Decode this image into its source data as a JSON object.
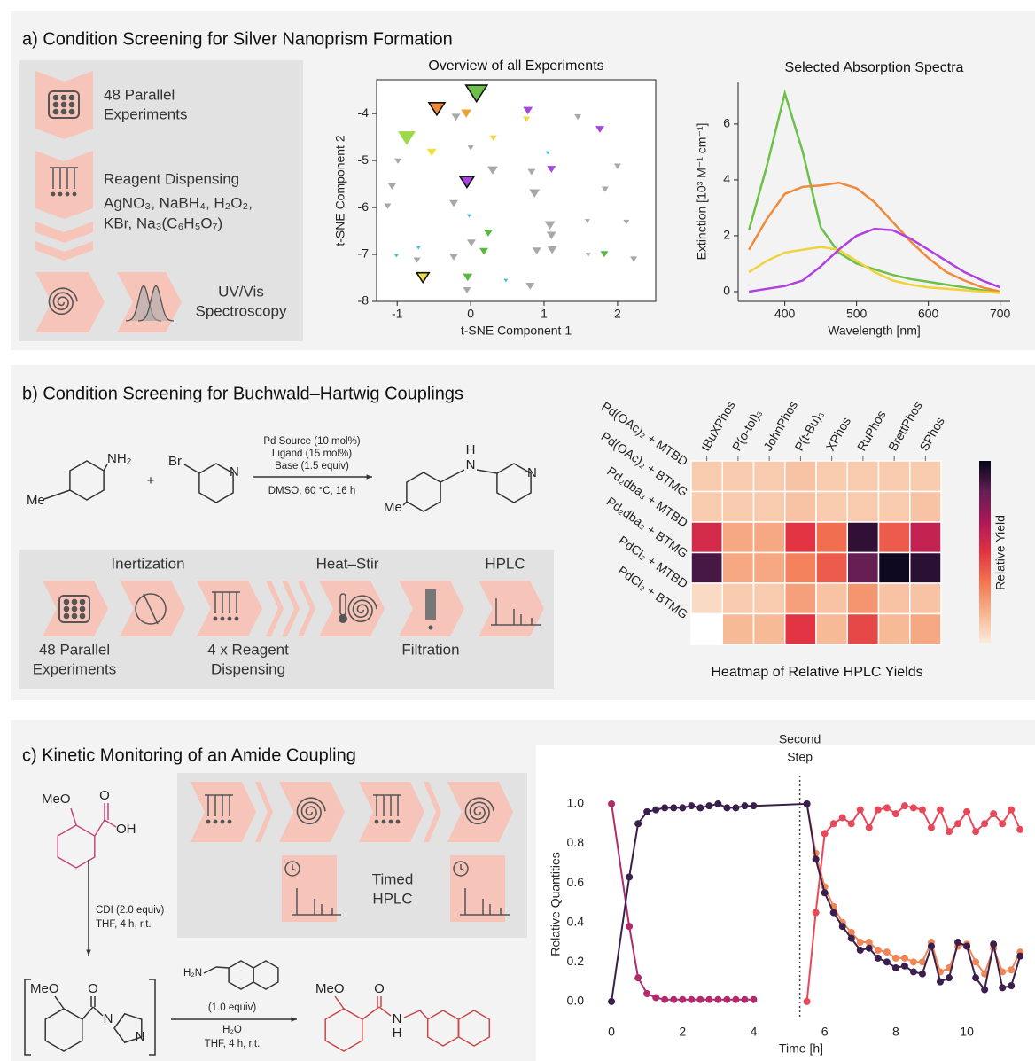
{
  "figure": {
    "panel_a": {
      "title": "a) Condition Screening for Silver Nanoprism Formation",
      "step1": [
        "48 Parallel",
        "Experiments"
      ],
      "step2_title": "Reagent Dispensing",
      "step2_reagents": [
        "AgNO₃, NaBH₄, H₂O₂,",
        "KBr, Na₃(C₆H₅O₇)"
      ],
      "step3": [
        "UV/Vis",
        "Spectroscopy"
      ]
    },
    "panel_b": {
      "title": "b) Condition Screening for Buchwald–Hartwig Couplings",
      "reaction": {
        "amine": "NH₂",
        "methyl": "Me",
        "plus": "+",
        "bromo": "Br",
        "ring_n": "N",
        "conditions_above": [
          "Pd Source (10 mol%)",
          "Ligand (15 mol%)",
          "Base (1.5 equiv)"
        ],
        "conditions_below": "DMSO, 60 °C, 16 h",
        "product_h": "H",
        "product_n": "N",
        "product_methyl": "Me",
        "product_ring_n": "N"
      },
      "workflow": {
        "top": [
          "Inertization",
          "Heat–Stir",
          "HPLC"
        ],
        "step1": [
          "48 Parallel",
          "Experiments"
        ],
        "step2": [
          "4 x Reagent",
          "Dispensing"
        ],
        "step3": "Filtration"
      }
    },
    "panel_c": {
      "title": "c) Kinetic Monitoring of an Amide Coupling",
      "acid": {
        "methoxy": "MeO",
        "oxygen": "O",
        "hydroxy": "OH"
      },
      "step1_conditions": [
        "CDI (2.0 equiv)",
        "THF, 4 h, r.t."
      ],
      "intermediate": {
        "methoxy": "MeO",
        "oxygen": "O",
        "n1": "N",
        "n2": "N"
      },
      "amine": "H₂N",
      "step2_conditions": [
        "(1.0 equiv)",
        "H₂O",
        "THF, 4 h, r.t."
      ],
      "product": {
        "methoxy": "MeO",
        "oxygen": "O",
        "n": "N",
        "h": "H"
      },
      "workflow": [
        "Timed",
        "HPLC"
      ]
    }
  },
  "chart_data": [
    {
      "type": "scatter",
      "title": "Overview of all Experiments",
      "xlabel": "t-SNE Component 1",
      "ylabel": "t-SNE Component 2",
      "xlim": [
        -1.28,
        2.52
      ],
      "ylim": [
        -8,
        -3.28
      ],
      "xticks": [
        -1,
        0,
        1,
        2
      ],
      "yticks": [
        -4,
        -5,
        -6,
        -7,
        -8
      ],
      "marker": "triangle-down",
      "x": [
        0.08,
        -0.46,
        -0.2,
        -0.06,
        0.78,
        0.76,
        1.46,
        1.76,
        -0.87,
        0.31,
        -0.53,
        -0.99,
        0,
        1.05,
        1.1,
        0.3,
        0.83,
        2.0,
        -0.05,
        -1.07,
        0.87,
        -0.23,
        -1.13,
        1.83,
        -0.02,
        1.08,
        1.1,
        1.59,
        2.12,
        0.24,
        0.01,
        -0.71,
        0.9,
        1.11,
        0.18,
        -1.01,
        -0.73,
        -0.23,
        1.6,
        1.82,
        2.22,
        -0.65,
        -0.04,
        -0.05,
        0.48,
        0.81
      ],
      "y": [
        -3.53,
        -3.87,
        -4.06,
        -3.98,
        -3.92,
        -4.11,
        -4.06,
        -4.32,
        -4.49,
        -4.51,
        -4.81,
        -5.0,
        -4.72,
        -4.83,
        -5.17,
        -5.19,
        -5.23,
        -5.11,
        -5.43,
        -5.53,
        -5.68,
        -5.9,
        -5.96,
        -5.6,
        -6.17,
        -6.36,
        -6.58,
        -6.28,
        -6.3,
        -6.53,
        -6.74,
        -6.85,
        -6.91,
        -6.89,
        -6.92,
        -7.02,
        -7.11,
        -7.04,
        -7.0,
        -6.98,
        -7.09,
        -7.47,
        -7.47,
        -7.75,
        -7.55,
        -7.66
      ],
      "sizes": [
        24,
        18,
        10,
        12,
        11,
        8,
        8,
        10,
        20,
        8,
        11,
        8,
        7,
        5,
        10,
        12,
        9,
        8,
        16,
        10,
        12,
        10,
        8,
        8,
        5,
        12,
        11,
        6,
        7,
        10,
        10,
        5,
        10,
        11,
        10,
        5,
        8,
        10,
        6,
        9,
        8,
        14,
        11,
        9,
        5,
        10
      ],
      "colors": [
        "#6cc04a",
        "#f08a3a",
        "#a8a8a8",
        "#f0a030",
        "#a845e0",
        "#f0d840",
        "#a8a8a8",
        "#a845e0",
        "#9cd84a",
        "#f0d840",
        "#f0e040",
        "#a8a8a8",
        "#a8a8a8",
        "#3cc0d0",
        "#a845e0",
        "#a8a8a8",
        "#a8a8a8",
        "#a8a8a8",
        "#a845e0",
        "#a8a8a8",
        "#a8a8a8",
        "#a8a8a8",
        "#a8a8a8",
        "#a8a8a8",
        "#3cc0d0",
        "#a8a8a8",
        "#a8a8a8",
        "#a8a8a8",
        "#a8a8a8",
        "#58b840",
        "#a8a8a8",
        "#3cc0d0",
        "#a8a8a8",
        "#a8a8a8",
        "#58b840",
        "#3cc0d0",
        "#a8a8a8",
        "#a8a8a8",
        "#a8a8a8",
        "#58b840",
        "#a8a8a8",
        "#f0d840",
        "#58b840",
        "#a8a8a8",
        "#3cc0d0",
        "#a8a8a8"
      ],
      "outlined": [
        0,
        1,
        18,
        41
      ]
    },
    {
      "type": "line",
      "title": "Selected Absorption Spectra",
      "xlabel": "Wavelength [nm]",
      "ylabel": "Extinction [10³ M⁻¹ cm⁻¹]",
      "xlim": [
        335,
        714
      ],
      "ylim": [
        -0.35,
        7.52
      ],
      "xticks": [
        400,
        500,
        600,
        700
      ],
      "yticks": [
        0,
        2,
        4,
        6
      ],
      "x": [
        350,
        375,
        400,
        425,
        450,
        475,
        500,
        525,
        550,
        575,
        600,
        625,
        650,
        675,
        700
      ],
      "series": [
        {
          "color": "#6cc04a",
          "values": [
            2.2,
            4.5,
            7.1,
            5.0,
            2.3,
            1.4,
            1.0,
            0.8,
            0.6,
            0.45,
            0.35,
            0.25,
            0.15,
            0.05,
            -0.05
          ]
        },
        {
          "color": "#f08a3a",
          "values": [
            1.5,
            2.6,
            3.5,
            3.75,
            3.8,
            3.9,
            3.7,
            3.2,
            2.5,
            1.8,
            1.2,
            0.7,
            0.4,
            0.15,
            0.0
          ]
        },
        {
          "color": "#f2d23a",
          "values": [
            0.7,
            1.1,
            1.4,
            1.5,
            1.6,
            1.5,
            1.1,
            0.7,
            0.4,
            0.25,
            0.15,
            0.1,
            0.05,
            0.0,
            -0.05
          ]
        },
        {
          "color": "#b040e0",
          "values": [
            0.0,
            0.1,
            0.2,
            0.4,
            0.9,
            1.5,
            2.0,
            2.25,
            2.2,
            1.9,
            1.5,
            1.1,
            0.7,
            0.4,
            0.15
          ]
        }
      ]
    },
    {
      "type": "heatmap",
      "title": "Heatmap of Relative HPLC Yields",
      "colorbar_label": "Relative Yield",
      "columns": [
        "tBuXPhos",
        "P(o-tol)₃",
        "JohnPhos",
        "P(t-Bu)₃",
        "XPhos",
        "RuPhos",
        "BrettPhos",
        "SPhos"
      ],
      "rows": [
        "Pd(OAc)₂ + MTBD",
        "Pd(OAc)₂ + BTMG",
        "Pd₂dba₃ + MTBD",
        "Pd₂dba₃ + BTMG",
        "PdCl₂ + MTBD",
        "PdCl₂ + BTMG"
      ],
      "values": [
        [
          0.1,
          0.1,
          0.1,
          0.12,
          0.1,
          0.1,
          0.1,
          0.1
        ],
        [
          0.1,
          0.1,
          0.1,
          0.12,
          0.1,
          0.1,
          0.1,
          0.12
        ],
        [
          0.55,
          0.2,
          0.2,
          0.5,
          0.35,
          0.92,
          0.4,
          0.6
        ],
        [
          0.88,
          0.2,
          0.2,
          0.3,
          0.4,
          0.82,
          0.98,
          0.93
        ],
        [
          0.05,
          0.1,
          0.1,
          0.22,
          0.12,
          0.25,
          0.12,
          0.12
        ],
        [
          null,
          0.15,
          0.15,
          0.5,
          0.15,
          0.45,
          0.15,
          0.2
        ]
      ],
      "zlim": [
        0,
        1
      ],
      "colormap": [
        "#faebdd",
        "#f6b48e",
        "#f37651",
        "#e13342",
        "#ad1759",
        "#611f53",
        "#03051a"
      ]
    },
    {
      "type": "line",
      "xlabel": "Time [h]",
      "ylabel": "Relative Quantities",
      "markers": true,
      "xlim": [
        -0.55,
        11.22
      ],
      "ylim": [
        -0.09,
        1.076
      ],
      "xticks": [
        0,
        2,
        4,
        6,
        8,
        10
      ],
      "yticks": [
        {
          "value": 0,
          "label": "0.0"
        },
        0.2,
        0.4,
        0.6,
        0.8,
        {
          "value": 1,
          "label": "1.0"
        }
      ],
      "annotations": [
        {
          "x": 5.3,
          "text": [
            "Second",
            "Step"
          ]
        }
      ],
      "series": [
        {
          "color": "#f08556",
          "x": [
            5.5,
            5.75,
            6,
            6.25,
            6.5,
            6.75,
            7,
            7.25,
            7.5,
            7.75,
            8,
            8.25,
            8.5,
            8.75,
            9,
            9.25,
            9.5,
            9.75,
            10,
            10.25,
            10.5,
            10.75,
            11,
            11.25,
            11.5
          ],
          "values": [
            1.0,
            0.75,
            0.58,
            0.48,
            0.4,
            0.35,
            0.3,
            0.3,
            0.26,
            0.25,
            0.22,
            0.22,
            0.2,
            0.2,
            0.3,
            0.15,
            0.17,
            0.28,
            0.29,
            0.2,
            0.14,
            0.27,
            0.15,
            0.16,
            0.25
          ]
        },
        {
          "color": "#e8485a",
          "x": [
            5.5,
            5.75,
            6,
            6.25,
            6.5,
            6.75,
            7,
            7.25,
            7.5,
            7.75,
            8,
            8.25,
            8.5,
            8.75,
            9,
            9.25,
            9.5,
            9.75,
            10,
            10.25,
            10.5,
            10.75,
            11,
            11.25,
            11.5
          ],
          "values": [
            0.0,
            0.45,
            0.85,
            0.9,
            0.93,
            0.9,
            0.97,
            0.88,
            0.97,
            0.98,
            0.95,
            0.99,
            0.98,
            0.97,
            0.88,
            0.97,
            0.86,
            0.9,
            0.96,
            0.86,
            0.9,
            0.95,
            0.9,
            0.97,
            0.87
          ]
        },
        {
          "color": "#b02a6c",
          "x": [
            0,
            0.5,
            0.75,
            1,
            1.25,
            1.5,
            1.75,
            2,
            2.25,
            2.5,
            2.75,
            3,
            3.25,
            3.5,
            3.75,
            4
          ],
          "values": [
            1.0,
            0.38,
            0.12,
            0.04,
            0.02,
            0.01,
            0.01,
            0.01,
            0.01,
            0.01,
            0.01,
            0.01,
            0.01,
            0.01,
            0.01,
            0.01
          ]
        },
        {
          "color": "#3a1f4c",
          "x": [
            0,
            0.5,
            0.75,
            1,
            1.25,
            1.5,
            1.75,
            2,
            2.25,
            2.5,
            2.75,
            3,
            3.25,
            3.5,
            3.75,
            4,
            5.5,
            5.75,
            6,
            6.25,
            6.5,
            6.75,
            7,
            7.25,
            7.5,
            7.75,
            8,
            8.25,
            8.5,
            8.75,
            9,
            9.25,
            9.5,
            9.75,
            10,
            10.25,
            10.5,
            10.75,
            11,
            11.25,
            11.5
          ],
          "values": [
            0.0,
            0.63,
            0.9,
            0.96,
            0.97,
            0.98,
            0.98,
            0.98,
            0.99,
            0.98,
            0.99,
            1.0,
            0.98,
            0.98,
            0.99,
            0.99,
            1.0,
            0.72,
            0.55,
            0.45,
            0.38,
            0.32,
            0.26,
            0.27,
            0.22,
            0.2,
            0.17,
            0.18,
            0.15,
            0.14,
            0.28,
            0.1,
            0.12,
            0.3,
            0.28,
            0.12,
            0.06,
            0.29,
            0.07,
            0.08,
            0.23
          ]
        }
      ]
    }
  ]
}
